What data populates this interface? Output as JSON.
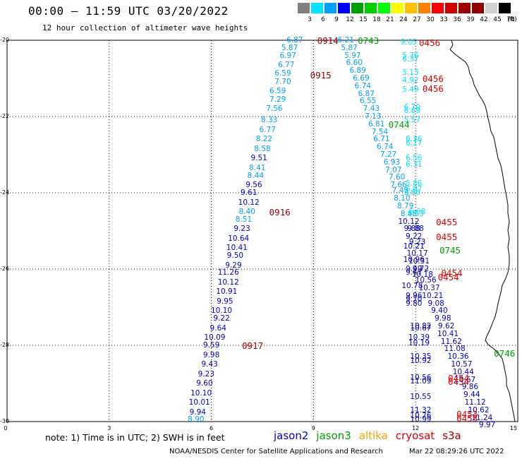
{
  "title": "00:00 – 11:59 UTC 03/20/2022",
  "subtitle": "12 hour collection of altimeter wave heights",
  "colorbar": {
    "unit": "(ft)",
    "labels": [
      "3",
      "6",
      "9",
      "12",
      "15",
      "18",
      "21",
      "24",
      "27",
      "30",
      "33",
      "36",
      "39",
      "42",
      "45",
      "70"
    ],
    "colors": [
      "#808080",
      "#00e4ff",
      "#00a0ff",
      "#0000ff",
      "#00a000",
      "#00d000",
      "#00ff00",
      "#ffff00",
      "#ffc000",
      "#ff8000",
      "#ff0000",
      "#d00000",
      "#a00000",
      "#900000",
      "#d0d0d0",
      "#000000"
    ]
  },
  "axes": {
    "y_labels": [
      "-20",
      "-22",
      "-24",
      "-26",
      "-28",
      "-30"
    ],
    "x_labels": [
      "0",
      "3",
      "6",
      "9",
      "12",
      "15"
    ]
  },
  "note": "note: 1) Time is in UTC; 2) SWH is in feet",
  "satellites": [
    {
      "name": "jason2",
      "color": "#0000c0"
    },
    {
      "name": "jason3",
      "color": "#00a000"
    },
    {
      "name": "altika",
      "color": "#ffa000"
    },
    {
      "name": "cryosat",
      "color": "#e00000"
    },
    {
      "name": "s3a",
      "color": "#a00000"
    }
  ],
  "credit": "NOAA/NESDIS Center for Satellite Applications and Research",
  "timestamp": "Mar 22 08:29:26 UTC 2022",
  "time_labels": [
    {
      "text": "0914",
      "lon": 9.11,
      "lat": -20.0,
      "color": "#a00000"
    },
    {
      "text": "0915",
      "lon": 8.9,
      "lat": -20.9,
      "color": "#a00000"
    },
    {
      "text": "0916",
      "lon": 7.7,
      "lat": -24.5,
      "color": "#a00000"
    },
    {
      "text": "0917",
      "lon": 6.9,
      "lat": -28.0,
      "color": "#a00000"
    },
    {
      "text": "0743",
      "lon": 10.3,
      "lat": -20.0,
      "color": "#00a000"
    },
    {
      "text": "0744",
      "lon": 11.2,
      "lat": -22.2,
      "color": "#00a000"
    },
    {
      "text": "0745",
      "lon": 12.7,
      "lat": -25.5,
      "color": "#00a000"
    },
    {
      "text": "0746",
      "lon": 14.3,
      "lat": -28.2,
      "color": "#00a000"
    },
    {
      "text": "0456",
      "lon": 12.1,
      "lat": -20.05,
      "color": "#e00000"
    },
    {
      "text": "0456",
      "lon": 12.2,
      "lat": -21.0,
      "color": "#e00000"
    },
    {
      "text": "0456",
      "lon": 12.2,
      "lat": -21.25,
      "color": "#e00000"
    },
    {
      "text": "0455",
      "lon": 12.6,
      "lat": -24.75,
      "color": "#e00000"
    },
    {
      "text": "0455",
      "lon": 12.6,
      "lat": -25.15,
      "color": "#e00000"
    },
    {
      "text": "0454",
      "lon": 12.75,
      "lat": -26.1,
      "color": "#e00000"
    },
    {
      "text": "0454",
      "lon": 12.65,
      "lat": -26.2,
      "color": "#e00000"
    },
    {
      "text": "0454",
      "lon": 12.95,
      "lat": -28.85,
      "color": "#e00000"
    },
    {
      "text": "0454",
      "lon": 12.95,
      "lat": -28.95,
      "color": "#e00000"
    },
    {
      "text": "0453",
      "lon": 13.2,
      "lat": -29.8,
      "color": "#e00000"
    },
    {
      "text": "0453",
      "lon": 13.2,
      "lat": -29.9,
      "color": "#e00000"
    }
  ],
  "observations": [
    {
      "v": "6.87",
      "lon": 8.45,
      "lat": -20.0,
      "c": "#00a0ff"
    },
    {
      "v": "5.87",
      "lon": 8.3,
      "lat": -20.2,
      "c": "#00a0ff"
    },
    {
      "v": "6.97",
      "lon": 8.25,
      "lat": -20.4,
      "c": "#00a0ff"
    },
    {
      "v": "6.77",
      "lon": 8.2,
      "lat": -20.65,
      "c": "#00a0ff"
    },
    {
      "v": "6.59",
      "lon": 8.1,
      "lat": -20.87,
      "c": "#00a0ff"
    },
    {
      "v": "7.70",
      "lon": 8.1,
      "lat": -21.1,
      "c": "#00a0ff"
    },
    {
      "v": "6.59",
      "lon": 7.95,
      "lat": -21.33,
      "c": "#00a0ff"
    },
    {
      "v": "7.29",
      "lon": 7.95,
      "lat": -21.55,
      "c": "#00a0ff"
    },
    {
      "v": "7.56",
      "lon": 7.85,
      "lat": -21.8,
      "c": "#00a0ff"
    },
    {
      "v": "8.33",
      "lon": 7.7,
      "lat": -22.1,
      "c": "#00a0ff"
    },
    {
      "v": "6.77",
      "lon": 7.65,
      "lat": -22.35,
      "c": "#00a0ff"
    },
    {
      "v": "8.22",
      "lon": 7.55,
      "lat": -22.6,
      "c": "#00a0ff"
    },
    {
      "v": "8.58",
      "lon": 7.5,
      "lat": -22.85,
      "c": "#00a0ff"
    },
    {
      "v": "9.51",
      "lon": 7.4,
      "lat": -23.1,
      "c": "#0000c0"
    },
    {
      "v": "8.41",
      "lon": 7.35,
      "lat": -23.35,
      "c": "#00a0ff"
    },
    {
      "v": "8.44",
      "lon": 7.3,
      "lat": -23.55,
      "c": "#00a0ff"
    },
    {
      "v": "9.56",
      "lon": 7.25,
      "lat": -23.8,
      "c": "#0000c0"
    },
    {
      "v": "9.61",
      "lon": 7.1,
      "lat": -24.0,
      "c": "#0000c0"
    },
    {
      "v": "10.12",
      "lon": 7.1,
      "lat": -24.25,
      "c": "#0000c0"
    },
    {
      "v": "8.40",
      "lon": 7.05,
      "lat": -24.5,
      "c": "#00a0ff"
    },
    {
      "v": "8.51",
      "lon": 6.95,
      "lat": -24.7,
      "c": "#00a0ff"
    },
    {
      "v": "9.23",
      "lon": 6.9,
      "lat": -24.95,
      "c": "#0000c0"
    },
    {
      "v": "10.64",
      "lon": 6.8,
      "lat": -25.2,
      "c": "#0000c0"
    },
    {
      "v": "10.41",
      "lon": 6.75,
      "lat": -25.45,
      "c": "#0000c0"
    },
    {
      "v": "9.50",
      "lon": 6.7,
      "lat": -25.65,
      "c": "#0000c0"
    },
    {
      "v": "9.29",
      "lon": 6.65,
      "lat": -25.9,
      "c": "#0000c0"
    },
    {
      "v": "11.26",
      "lon": 6.5,
      "lat": -26.1,
      "c": "#0000c0"
    },
    {
      "v": "10.12",
      "lon": 6.5,
      "lat": -26.35,
      "c": "#0000c0"
    },
    {
      "v": "10.91",
      "lon": 6.45,
      "lat": -26.6,
      "c": "#0000c0"
    },
    {
      "v": "9.95",
      "lon": 6.4,
      "lat": -26.85,
      "c": "#0000c0"
    },
    {
      "v": "10.10",
      "lon": 6.3,
      "lat": -27.1,
      "c": "#0000c0"
    },
    {
      "v": "9.22",
      "lon": 6.3,
      "lat": -27.3,
      "c": "#0000c0"
    },
    {
      "v": "9.64",
      "lon": 6.2,
      "lat": -27.55,
      "c": "#0000c0"
    },
    {
      "v": "10.09",
      "lon": 6.1,
      "lat": -27.8,
      "c": "#0000c0"
    },
    {
      "v": "9.59",
      "lon": 6.0,
      "lat": -28.0,
      "c": "#0000c0"
    },
    {
      "v": "9.98",
      "lon": 6.0,
      "lat": -28.25,
      "c": "#0000c0"
    },
    {
      "v": "9.43",
      "lon": 5.95,
      "lat": -28.5,
      "c": "#0000c0"
    },
    {
      "v": "9.23",
      "lon": 5.85,
      "lat": -28.75,
      "c": "#0000c0"
    },
    {
      "v": "9.60",
      "lon": 5.8,
      "lat": -29.0,
      "c": "#0000c0"
    },
    {
      "v": "10.10",
      "lon": 5.7,
      "lat": -29.25,
      "c": "#0000c0"
    },
    {
      "v": "10.01",
      "lon": 5.65,
      "lat": -29.5,
      "c": "#0000c0"
    },
    {
      "v": "9.94",
      "lon": 5.6,
      "lat": -29.75,
      "c": "#0000c0"
    },
    {
      "v": "8.90",
      "lon": 5.55,
      "lat": -29.95,
      "c": "#00a0ff"
    },
    {
      "v": "6.21",
      "lon": 9.95,
      "lat": -20.0,
      "c": "#00a0ff"
    },
    {
      "v": "5.87",
      "lon": 10.05,
      "lat": -20.2,
      "c": "#00a0ff"
    },
    {
      "v": "5.97",
      "lon": 10.15,
      "lat": -20.4,
      "c": "#00a0ff"
    },
    {
      "v": "6.60",
      "lon": 10.2,
      "lat": -20.6,
      "c": "#00a0ff"
    },
    {
      "v": "6.89",
      "lon": 10.3,
      "lat": -20.8,
      "c": "#00a0ff"
    },
    {
      "v": "6.69",
      "lon": 10.4,
      "lat": -21.0,
      "c": "#00a0ff"
    },
    {
      "v": "6.74",
      "lon": 10.45,
      "lat": -21.2,
      "c": "#00a0ff"
    },
    {
      "v": "6.87",
      "lon": 10.55,
      "lat": -21.4,
      "c": "#00a0ff"
    },
    {
      "v": "6.55",
      "lon": 10.6,
      "lat": -21.6,
      "c": "#00a0ff"
    },
    {
      "v": "7.43",
      "lon": 10.7,
      "lat": -21.8,
      "c": "#00a0ff"
    },
    {
      "v": "7.13",
      "lon": 10.75,
      "lat": -22.0,
      "c": "#00a0ff"
    },
    {
      "v": "6.81",
      "lon": 10.85,
      "lat": -22.2,
      "c": "#00a0ff"
    },
    {
      "v": "7.54",
      "lon": 10.95,
      "lat": -22.4,
      "c": "#00a0ff"
    },
    {
      "v": "6.71",
      "lon": 11.0,
      "lat": -22.6,
      "c": "#00a0ff"
    },
    {
      "v": "6.74",
      "lon": 11.1,
      "lat": -22.8,
      "c": "#00a0ff"
    },
    {
      "v": "7.27",
      "lon": 11.2,
      "lat": -23.0,
      "c": "#00a0ff"
    },
    {
      "v": "6.93",
      "lon": 11.3,
      "lat": -23.2,
      "c": "#00a0ff"
    },
    {
      "v": "7.07",
      "lon": 11.35,
      "lat": -23.4,
      "c": "#00a0ff"
    },
    {
      "v": "7.60",
      "lon": 11.45,
      "lat": -23.6,
      "c": "#00a0ff"
    },
    {
      "v": "7.66",
      "lon": 11.5,
      "lat": -23.8,
      "c": "#00a0ff"
    },
    {
      "v": "7.49",
      "lon": 11.55,
      "lat": -23.95,
      "c": "#00a0ff"
    },
    {
      "v": "8.10",
      "lon": 11.6,
      "lat": -24.15,
      "c": "#00a0ff"
    },
    {
      "v": "8.79",
      "lon": 11.7,
      "lat": -24.35,
      "c": "#00a0ff"
    },
    {
      "v": "8.48",
      "lon": 11.8,
      "lat": -24.55,
      "c": "#00a0ff"
    },
    {
      "v": "10.12",
      "lon": 11.8,
      "lat": -24.75,
      "c": "#0000c0"
    },
    {
      "v": "9.88",
      "lon": 11.9,
      "lat": -24.95,
      "c": "#0000c0"
    },
    {
      "v": "9.22",
      "lon": 11.95,
      "lat": -25.15,
      "c": "#0000c0"
    },
    {
      "v": "10.21",
      "lon": 11.95,
      "lat": -25.4,
      "c": "#0000c0"
    },
    {
      "v": "10.17",
      "lon": 12.05,
      "lat": -25.6,
      "c": "#0000c0"
    },
    {
      "v": "10.31",
      "lon": 12.1,
      "lat": -25.8,
      "c": "#0000c0"
    },
    {
      "v": "9.72",
      "lon": 12.15,
      "lat": -26.0,
      "c": "#0000c0"
    },
    {
      "v": "10.18",
      "lon": 12.2,
      "lat": -26.15,
      "c": "#0000c0"
    },
    {
      "v": "10.56",
      "lon": 12.3,
      "lat": -26.3,
      "c": "#0000c0"
    },
    {
      "v": "10.37",
      "lon": 12.4,
      "lat": -26.5,
      "c": "#0000c0"
    },
    {
      "v": "10.21",
      "lon": 12.5,
      "lat": -26.7,
      "c": "#0000c0"
    },
    {
      "v": "9.08",
      "lon": 12.6,
      "lat": -26.9,
      "c": "#0000c0"
    },
    {
      "v": "9.40",
      "lon": 12.7,
      "lat": -27.1,
      "c": "#0000c0"
    },
    {
      "v": "9.98",
      "lon": 12.8,
      "lat": -27.3,
      "c": "#0000c0"
    },
    {
      "v": "9.62",
      "lon": 12.9,
      "lat": -27.5,
      "c": "#0000c0"
    },
    {
      "v": "10.41",
      "lon": 12.95,
      "lat": -27.7,
      "c": "#0000c0"
    },
    {
      "v": "11.62",
      "lon": 13.05,
      "lat": -27.9,
      "c": "#0000c0"
    },
    {
      "v": "11.08",
      "lon": 13.15,
      "lat": -28.1,
      "c": "#0000c0"
    },
    {
      "v": "10.36",
      "lon": 13.25,
      "lat": -28.3,
      "c": "#0000c0"
    },
    {
      "v": "10.57",
      "lon": 13.35,
      "lat": -28.5,
      "c": "#0000c0"
    },
    {
      "v": "10.44",
      "lon": 13.4,
      "lat": -28.7,
      "c": "#0000c0"
    },
    {
      "v": "10.67",
      "lon": 13.45,
      "lat": -28.9,
      "c": "#0000c0"
    },
    {
      "v": "9.86",
      "lon": 13.6,
      "lat": -29.1,
      "c": "#0000c0"
    },
    {
      "v": "9.44",
      "lon": 13.65,
      "lat": -29.3,
      "c": "#0000c0"
    },
    {
      "v": "11.12",
      "lon": 13.75,
      "lat": -29.5,
      "c": "#0000c0"
    },
    {
      "v": "10.62",
      "lon": 13.85,
      "lat": -29.7,
      "c": "#0000c0"
    },
    {
      "v": "11.24",
      "lon": 13.95,
      "lat": -29.9,
      "c": "#0000c0"
    },
    {
      "v": "9.97",
      "lon": 14.1,
      "lat": -30.1,
      "c": "#0000c0"
    },
    {
      "v": "9.05",
      "lon": 11.8,
      "lat": -20.05,
      "c": "#00e4ff"
    },
    {
      "v": "5.76",
      "lon": 11.85,
      "lat": -20.4,
      "c": "#00e4ff"
    },
    {
      "v": "6.37",
      "lon": 11.85,
      "lat": -20.5,
      "c": "#00e4ff"
    },
    {
      "v": "5.13",
      "lon": 11.85,
      "lat": -20.85,
      "c": "#00e4ff"
    },
    {
      "v": "4.92",
      "lon": 11.85,
      "lat": -21.05,
      "c": "#00e4ff"
    },
    {
      "v": "5.49",
      "lon": 11.85,
      "lat": -21.3,
      "c": "#00e4ff"
    },
    {
      "v": "6.70",
      "lon": 11.9,
      "lat": -21.75,
      "c": "#00e4ff"
    },
    {
      "v": "6.69",
      "lon": 11.9,
      "lat": -21.85,
      "c": "#00e4ff"
    },
    {
      "v": "5.57",
      "lon": 11.9,
      "lat": -22.1,
      "c": "#00e4ff"
    },
    {
      "v": "6.36",
      "lon": 11.95,
      "lat": -22.6,
      "c": "#00e4ff"
    },
    {
      "v": "6.17",
      "lon": 11.95,
      "lat": -22.7,
      "c": "#00e4ff"
    },
    {
      "v": "6.56",
      "lon": 11.95,
      "lat": -23.1,
      "c": "#00e4ff"
    },
    {
      "v": "6.31",
      "lon": 11.95,
      "lat": -23.25,
      "c": "#00e4ff"
    },
    {
      "v": "5.86",
      "lon": 11.95,
      "lat": -23.75,
      "c": "#00e4ff"
    },
    {
      "v": "6.97",
      "lon": 11.95,
      "lat": -23.9,
      "c": "#00e4ff"
    },
    {
      "v": "5.66",
      "lon": 11.9,
      "lat": -24.0,
      "c": "#00e4ff"
    },
    {
      "v": "6.68",
      "lon": 12.05,
      "lat": -24.5,
      "c": "#00e4ff"
    },
    {
      "v": "8.53",
      "lon": 12.0,
      "lat": -24.55,
      "c": "#00e4ff"
    },
    {
      "v": "9.88",
      "lon": 12.0,
      "lat": -24.95,
      "c": "#0000c0"
    },
    {
      "v": "9.23",
      "lon": 12.05,
      "lat": -25.3,
      "c": "#0000c0"
    },
    {
      "v": "10.96",
      "lon": 11.95,
      "lat": -25.75,
      "c": "#0000c0"
    },
    {
      "v": "9.49",
      "lon": 11.95,
      "lat": -26.0,
      "c": "#0000c0"
    },
    {
      "v": "9.47",
      "lon": 11.95,
      "lat": -26.1,
      "c": "#0000c0"
    },
    {
      "v": "10.78",
      "lon": 11.9,
      "lat": -26.45,
      "c": "#0000c0"
    },
    {
      "v": "9.96",
      "lon": 11.95,
      "lat": -26.7,
      "c": "#0000c0"
    },
    {
      "v": "9.70",
      "lon": 11.95,
      "lat": -26.8,
      "c": "#0000c0"
    },
    {
      "v": "9.80",
      "lon": 11.95,
      "lat": -26.9,
      "c": "#0000c0"
    },
    {
      "v": "10.82",
      "lon": 12.15,
      "lat": -27.5,
      "c": "#0000c0"
    },
    {
      "v": "10.67",
      "lon": 12.15,
      "lat": -27.55,
      "c": "#0000c0"
    },
    {
      "v": "10.39",
      "lon": 12.1,
      "lat": -27.8,
      "c": "#0000c0"
    },
    {
      "v": "10.19",
      "lon": 12.1,
      "lat": -27.95,
      "c": "#0000c0"
    },
    {
      "v": "10.35",
      "lon": 12.15,
      "lat": -28.3,
      "c": "#0000c0"
    },
    {
      "v": "10.92",
      "lon": 12.15,
      "lat": -28.4,
      "c": "#0000c0"
    },
    {
      "v": "10.56",
      "lon": 12.15,
      "lat": -28.85,
      "c": "#0000c0"
    },
    {
      "v": "11.09",
      "lon": 12.15,
      "lat": -28.95,
      "c": "#0000c0"
    },
    {
      "v": "10.55",
      "lon": 12.15,
      "lat": -29.35,
      "c": "#0000c0"
    },
    {
      "v": "11.32",
      "lon": 12.15,
      "lat": -29.7,
      "c": "#0000c0"
    },
    {
      "v": "10.76",
      "lon": 12.15,
      "lat": -29.85,
      "c": "#0000c0"
    },
    {
      "v": "10.99",
      "lon": 12.15,
      "lat": -29.95,
      "c": "#0000c0"
    }
  ]
}
